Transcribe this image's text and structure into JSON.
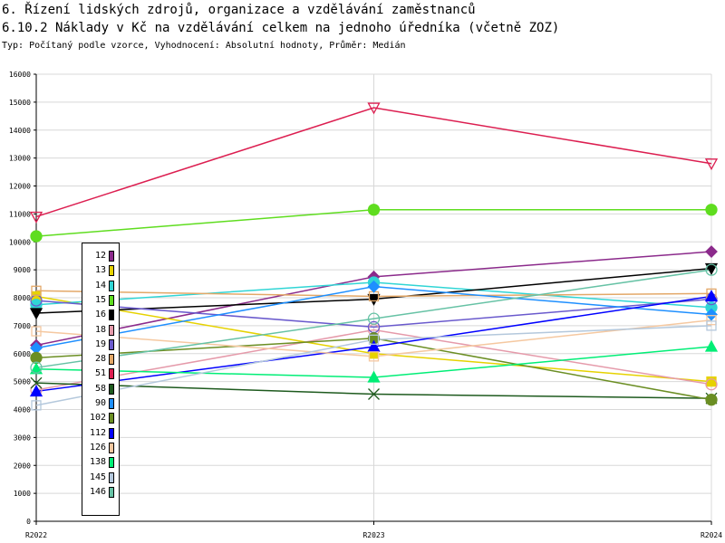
{
  "header": {
    "title_line1": "6. Řízení lidských zdrojů, organizace a vzdělávání zaměstnanců",
    "title_line2": "6.10.2 Náklady v Kč na vzdělávání celkem na jednoho úředníka (včetně ZOZ)",
    "subtitle": "Typ: Počítaný podle vzorce, Vyhodnocení: Absolutní hodnoty, Průměr: Medián"
  },
  "chart_data": {
    "type": "line",
    "categories": [
      "R2022",
      "R2023",
      "R2024"
    ],
    "ylim": [
      0,
      16000
    ],
    "yticks": [
      0,
      1000,
      2000,
      3000,
      4000,
      5000,
      6000,
      7000,
      8000,
      9000,
      10000,
      11000,
      12000,
      13000,
      14000,
      15000,
      16000
    ],
    "grid": true,
    "legend_position": "left-bottom",
    "series": [
      {
        "name": "12",
        "color": "#8b2a8b",
        "marker": "diamond",
        "values": [
          6300,
          8750,
          9650
        ]
      },
      {
        "name": "13",
        "color": "#e6d200",
        "marker": "square",
        "values": [
          8050,
          6000,
          5000
        ]
      },
      {
        "name": "14",
        "color": "#30d5d5",
        "marker": "circle",
        "values": [
          7750,
          8550,
          7650
        ]
      },
      {
        "name": "15",
        "color": "#5fdd1f",
        "marker": "circle",
        "values": [
          10200,
          11150,
          11150
        ]
      },
      {
        "name": "16",
        "color": "#000000",
        "marker": "triangle-down",
        "values": [
          7450,
          7950,
          9050
        ]
      },
      {
        "name": "18",
        "color": "#e59aaa",
        "marker": "circle-open",
        "values": [
          4700,
          6850,
          4900
        ]
      },
      {
        "name": "19",
        "color": "#6a5acd",
        "marker": "circle-open",
        "values": [
          7900,
          6950,
          7950
        ]
      },
      {
        "name": "28",
        "color": "#e3a868",
        "marker": "square-open",
        "values": [
          8250,
          8050,
          8150
        ]
      },
      {
        "name": "51",
        "color": "#dc1e50",
        "marker": "triangle-down-open",
        "values": [
          10900,
          14800,
          12800
        ]
      },
      {
        "name": "58",
        "color": "#1e5a1e",
        "marker": "x",
        "values": [
          4950,
          4550,
          4400
        ]
      },
      {
        "name": "90",
        "color": "#1e8fff",
        "marker": "diamond",
        "values": [
          6200,
          8400,
          7400
        ]
      },
      {
        "name": "102",
        "color": "#6b8e23",
        "marker": "circle",
        "values": [
          5850,
          6550,
          4350
        ]
      },
      {
        "name": "112",
        "color": "#0000ff",
        "marker": "triangle",
        "values": [
          4650,
          6250,
          8050
        ]
      },
      {
        "name": "126",
        "color": "#f5c8a0",
        "marker": "square-open",
        "values": [
          6800,
          5900,
          7200
        ]
      },
      {
        "name": "138",
        "color": "#00ee76",
        "marker": "triangle",
        "values": [
          5450,
          5150,
          6250
        ]
      },
      {
        "name": "145",
        "color": "#b4c8dc",
        "marker": "square-open",
        "values": [
          4150,
          6500,
          7000
        ]
      },
      {
        "name": "146",
        "color": "#66c2a5",
        "marker": "circle-open",
        "values": [
          5500,
          7250,
          9000
        ]
      }
    ]
  }
}
